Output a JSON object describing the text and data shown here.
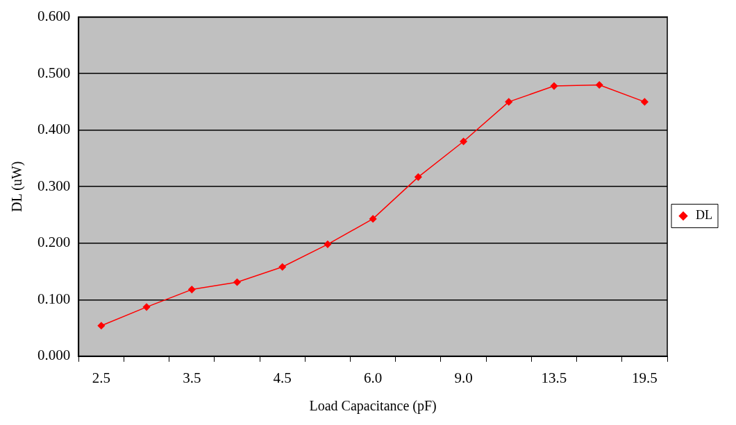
{
  "chart_data": {
    "type": "line",
    "xlabel": "Load Capacitance (pF)",
    "ylabel": "DL (uW)",
    "categories": [
      "2.5",
      null,
      "3.5",
      null,
      "4.5",
      null,
      "6.0",
      null,
      "9.0",
      null,
      "13.5",
      null,
      "19.5"
    ],
    "series": [
      {
        "name": "DL",
        "color": "#ff0000",
        "values": [
          0.054,
          0.087,
          0.118,
          0.131,
          0.158,
          0.198,
          0.243,
          0.317,
          0.38,
          0.45,
          0.478,
          0.48,
          0.45
        ]
      }
    ],
    "ylim": [
      0,
      0.6
    ],
    "yticks": [
      {
        "value": 0,
        "label": "0.000"
      },
      {
        "value": 0.1,
        "label": "0.100"
      },
      {
        "value": 0.2,
        "label": "0.200"
      },
      {
        "value": 0.3,
        "label": "0.300"
      },
      {
        "value": 0.4,
        "label": "0.400"
      },
      {
        "value": 0.5,
        "label": "0.500"
      },
      {
        "value": 0.6,
        "label": "0.600"
      }
    ],
    "grid": "y",
    "legend": "right",
    "marker": "diamond",
    "line_style": "solid"
  }
}
